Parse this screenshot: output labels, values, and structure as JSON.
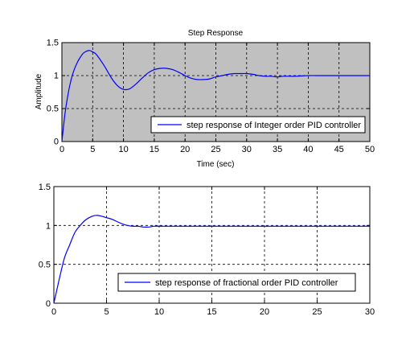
{
  "chart_data": [
    {
      "type": "line",
      "title": "Step Response",
      "xlabel": "Time (sec)",
      "ylabel": "Amplitude",
      "xlim": [
        0,
        50
      ],
      "ylim": [
        0,
        1.5
      ],
      "xticks": [
        "0",
        "5",
        "10",
        "15",
        "20",
        "25",
        "30",
        "35",
        "40",
        "45",
        "50"
      ],
      "yticks": [
        "0",
        "0.5",
        "1",
        "1.5"
      ],
      "grid": true,
      "legend_position": "bottom-right",
      "background": "#c0c0c0",
      "series": [
        {
          "name": "step response of Integer order PID controller",
          "color": "#0000ff",
          "x": [
            0,
            0.5,
            1,
            1.5,
            2,
            2.5,
            3,
            3.5,
            4,
            4.5,
            5,
            5.5,
            6,
            7,
            8,
            9,
            10,
            11,
            12,
            13,
            14,
            15,
            16,
            17,
            18,
            19,
            20,
            21,
            22,
            23,
            24,
            25,
            26,
            27,
            28,
            29,
            30,
            31,
            32,
            33,
            34,
            35,
            36,
            38,
            40,
            42,
            44,
            46,
            48,
            50
          ],
          "y": [
            0,
            0.42,
            0.72,
            0.94,
            1.09,
            1.2,
            1.28,
            1.34,
            1.37,
            1.38,
            1.36,
            1.33,
            1.27,
            1.13,
            0.97,
            0.85,
            0.79,
            0.8,
            0.87,
            0.96,
            1.04,
            1.09,
            1.11,
            1.11,
            1.09,
            1.05,
            1.0,
            0.96,
            0.94,
            0.94,
            0.95,
            0.98,
            1.0,
            1.02,
            1.03,
            1.03,
            1.03,
            1.02,
            1.0,
            0.99,
            0.99,
            0.98,
            0.99,
            0.99,
            1.0,
            1.0,
            1.0,
            1.0,
            1.0,
            1.0
          ]
        }
      ]
    },
    {
      "type": "line",
      "title": "",
      "xlabel": "",
      "ylabel": "",
      "xlim": [
        0,
        30
      ],
      "ylim": [
        0,
        1.5
      ],
      "xticks": [
        "0",
        "5",
        "10",
        "15",
        "20",
        "25",
        "30"
      ],
      "yticks": [
        "0",
        "0.5",
        "1",
        "1.5"
      ],
      "grid": true,
      "legend_position": "bottom-center",
      "background": "#ffffff",
      "series": [
        {
          "name": "step response of fractional order PID controller",
          "color": "#0000ff",
          "x": [
            0,
            0.5,
            1,
            1.5,
            2,
            2.5,
            3,
            3.5,
            4,
            4.5,
            5,
            5.5,
            6,
            6.5,
            7,
            7.5,
            8,
            8.5,
            9,
            9.5,
            10,
            11,
            12,
            14,
            16,
            18,
            20,
            25,
            30
          ],
          "y": [
            0,
            0.3,
            0.58,
            0.75,
            0.91,
            1.0,
            1.07,
            1.11,
            1.13,
            1.12,
            1.1,
            1.08,
            1.05,
            1.02,
            1.0,
            0.99,
            0.99,
            0.98,
            0.98,
            0.99,
            0.99,
            0.99,
            0.99,
            0.99,
            0.99,
            0.99,
            0.99,
            0.99,
            0.99
          ]
        }
      ]
    }
  ]
}
